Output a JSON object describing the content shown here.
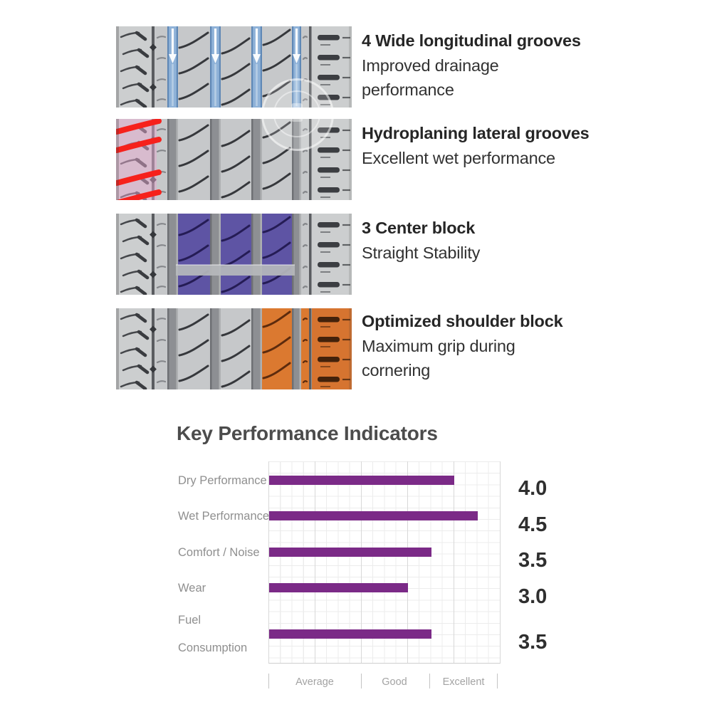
{
  "features": [
    {
      "title": "4 Wide longitudinal grooves",
      "lines": [
        "Improved drainage",
        "performance"
      ],
      "highlight": "blue-longitudinal-grooves-with-down-arrows",
      "highlight_color": "#8fb2d8"
    },
    {
      "title": "Hydroplaning lateral grooves",
      "lines": [
        "Excellent wet performance"
      ],
      "highlight": "red-lateral-grooves-on-pink-shoulder",
      "highlight_color": "#f6211c"
    },
    {
      "title": "3 Center block",
      "lines": [
        "Straight Stability"
      ],
      "highlight": "purple-center-blocks",
      "highlight_color": "#5e54a4"
    },
    {
      "title": "Optimized shoulder block",
      "lines": [
        "Maximum grip during",
        "cornering"
      ],
      "highlight": "orange-shoulder-blocks",
      "highlight_color": "#db7930"
    }
  ],
  "colors": {
    "groove_highlight": "#8fb2d8",
    "groove_highlight_edge": "#5f88b6",
    "lateral_red": "#f6211c",
    "lateral_pink": "#e3a8cd",
    "center_purple": "#5e54a4",
    "center_purple_sipe": "#251c55",
    "shoulder_orange": "#db7930",
    "shoulder_orange_dark": "#5d2b0d",
    "bar_purple": "#7b2a87",
    "tread_gray": "#c6c8ca",
    "groove_gray": "#8d8f93"
  },
  "chart_data": {
    "type": "bar",
    "orientation": "horizontal",
    "title": "Key Performance Indicators",
    "categories": [
      "Dry Performance",
      "Wet Performance",
      "Comfort / Noise",
      "Wear",
      "Fuel Consumption"
    ],
    "category_lines": [
      [
        "Dry Performance"
      ],
      [
        "Wet Performance"
      ],
      [
        "Comfort / Noise"
      ],
      [
        "Wear"
      ],
      [
        "Fuel",
        "Consumption"
      ]
    ],
    "values": [
      4.0,
      4.5,
      3.5,
      3.0,
      3.5
    ],
    "value_labels": [
      "4.0",
      "4.5",
      "3.5",
      "3.0",
      "3.5"
    ],
    "xlim": [
      0,
      5
    ],
    "axis_sections": [
      {
        "label": "Average",
        "from": 0,
        "to": 2
      },
      {
        "label": "Good",
        "from": 2,
        "to": 3.5
      },
      {
        "label": "Excellent",
        "from": 3.5,
        "to": 5
      }
    ],
    "bar_color": "#7b2a87",
    "grid": true,
    "legend": "none"
  }
}
